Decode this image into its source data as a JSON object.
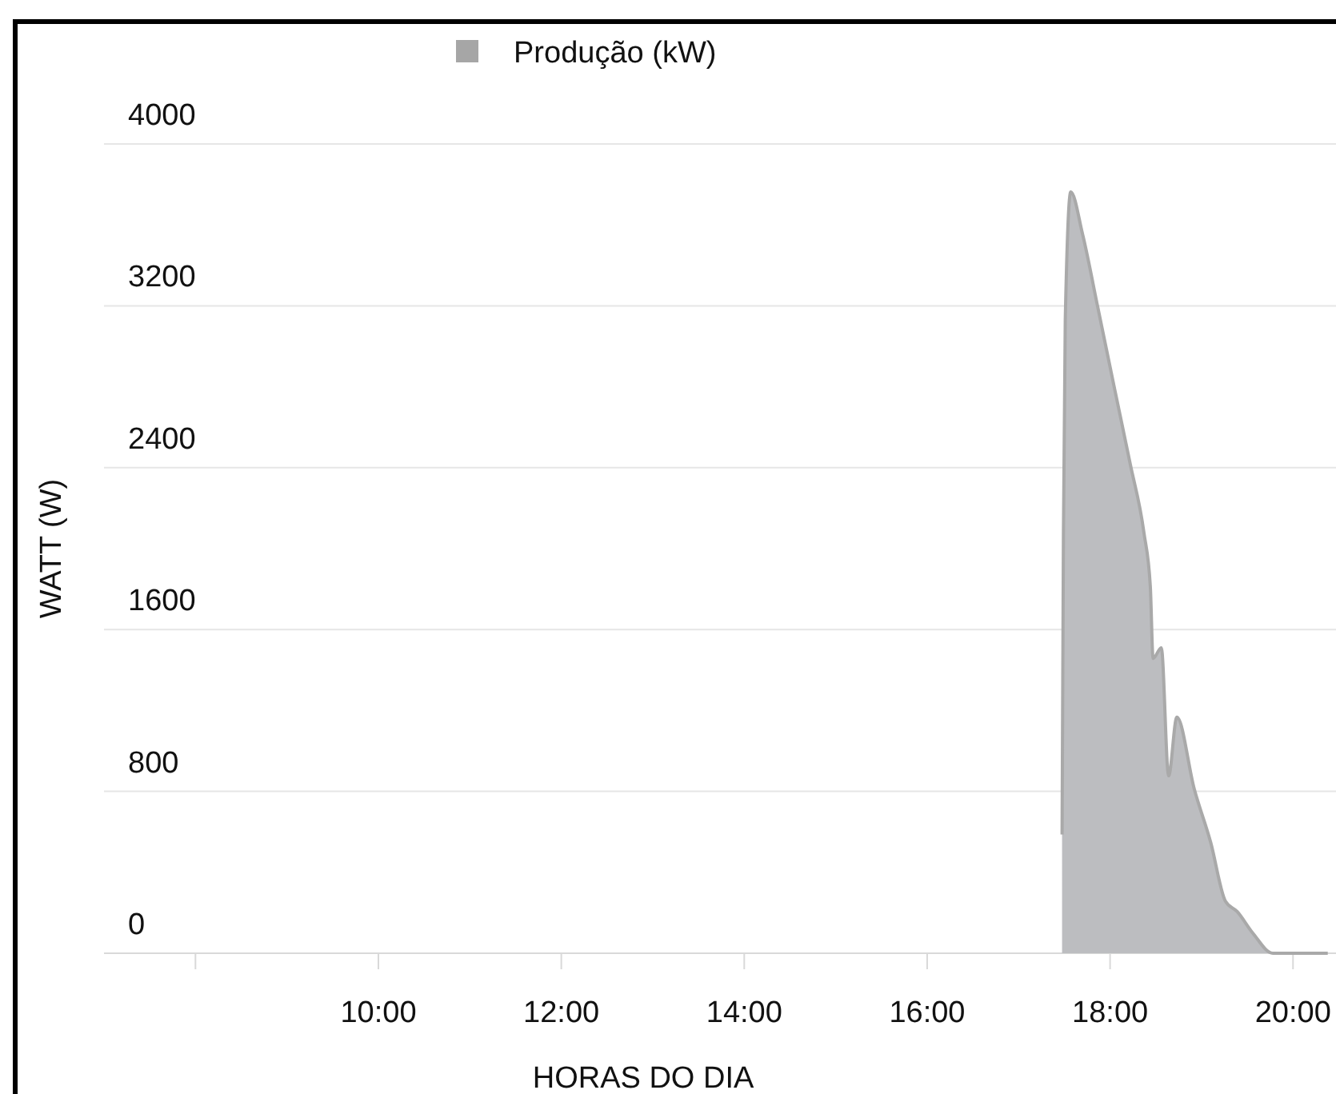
{
  "chart_data": {
    "type": "area",
    "xlabel": "HORAS DO DIA",
    "ylabel": "WATT (W)",
    "legend": "top",
    "grid": "y",
    "xlim": [
      7,
      20.47
    ],
    "xticks": [
      {
        "value": 8,
        "label": null
      },
      {
        "value": 10,
        "label": "10:00"
      },
      {
        "value": 12,
        "label": "12:00"
      },
      {
        "value": 14,
        "label": "14:00"
      },
      {
        "value": 16,
        "label": "16:00"
      },
      {
        "value": 18,
        "label": "18:00"
      },
      {
        "value": 20,
        "label": "20:00"
      }
    ],
    "ylim": [
      0,
      4000
    ],
    "yticks": [
      0,
      800,
      1600,
      2400,
      3200,
      4000
    ],
    "series": [
      {
        "name": "Produção (kW)",
        "color": "#bcbdc0",
        "x": [
          17.475,
          17.49,
          17.51,
          17.57,
          17.7,
          17.87,
          18.05,
          18.22,
          18.37,
          18.44,
          18.47,
          18.56,
          18.64,
          18.73,
          18.92,
          19.1,
          19.26,
          19.39,
          19.56,
          19.78,
          20.38
        ],
        "values": [
          587,
          2079,
          3130,
          3763,
          3552,
          3183,
          2788,
          2419,
          2079,
          1813,
          1457,
          1510,
          877,
          1167,
          812,
          548,
          258,
          206,
          100,
          0,
          0
        ]
      }
    ]
  }
}
